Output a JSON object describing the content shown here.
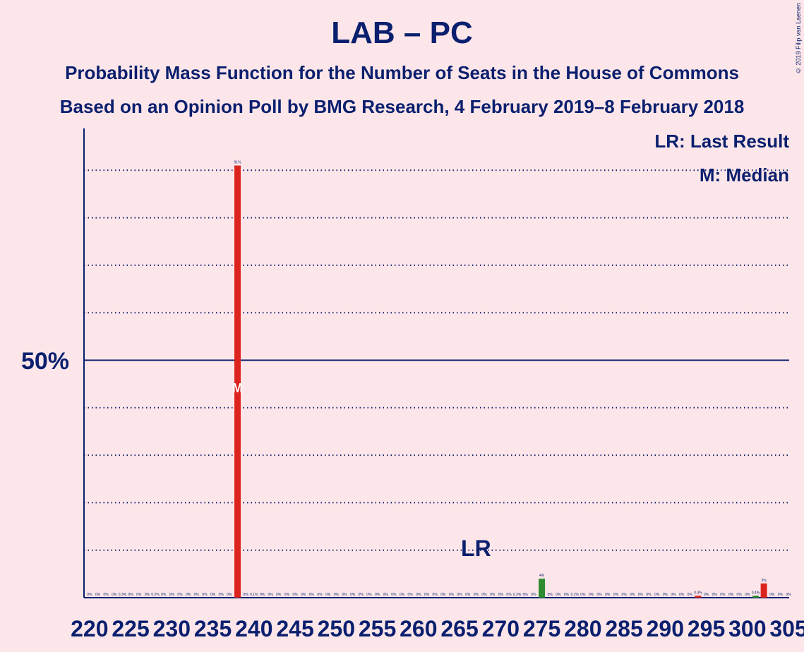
{
  "chart_data": {
    "type": "bar",
    "title": "LAB – PC",
    "subtitle": "Probability Mass Function for the Number of Seats in the House of Commons",
    "subtitle2": "Based on an Opinion Poll by BMG Research, 4 February 2019–8 February 2018",
    "copyright": "© 2019 Filip van Laenen",
    "y_tick_label": "50%",
    "ylim": [
      0,
      100
    ],
    "x_range": [
      220,
      305
    ],
    "x_tick_labels": [
      "220",
      "225",
      "230",
      "235",
      "240",
      "245",
      "250",
      "255",
      "260",
      "265",
      "270",
      "275",
      "280",
      "285",
      "290",
      "295",
      "300",
      "305"
    ],
    "legend": [
      "LR: Last Result",
      "M: Median"
    ],
    "last_result": {
      "seat": 267,
      "label": "LR"
    },
    "median": {
      "seat": 238,
      "label": "M"
    },
    "colors": {
      "pc": "#DC241F",
      "lab": "#2E8B30",
      "axis": "#0A1F6E",
      "background": "#FDE6E9",
      "median_marker": "#FFFFFF"
    },
    "bars": [
      {
        "seat": 238,
        "value": 91,
        "label": "91%",
        "color": "#DC241F"
      },
      {
        "seat": 275,
        "value": 4,
        "label": "4%",
        "color": "#2E8B30"
      },
      {
        "seat": 294,
        "value": 0.4,
        "label": "0.4%",
        "color": "#DC241F"
      },
      {
        "seat": 301,
        "value": 0.4,
        "label": "0.4%",
        "color": "#2E8B30"
      },
      {
        "seat": 302,
        "value": 3,
        "label": "3%",
        "color": "#DC241F"
      }
    ],
    "small_labels": {
      "224": "0.3%",
      "228": "0.2%",
      "240": "0.1%",
      "272": "0.2%",
      "279": "0.1%"
    },
    "default_label": "0%"
  }
}
